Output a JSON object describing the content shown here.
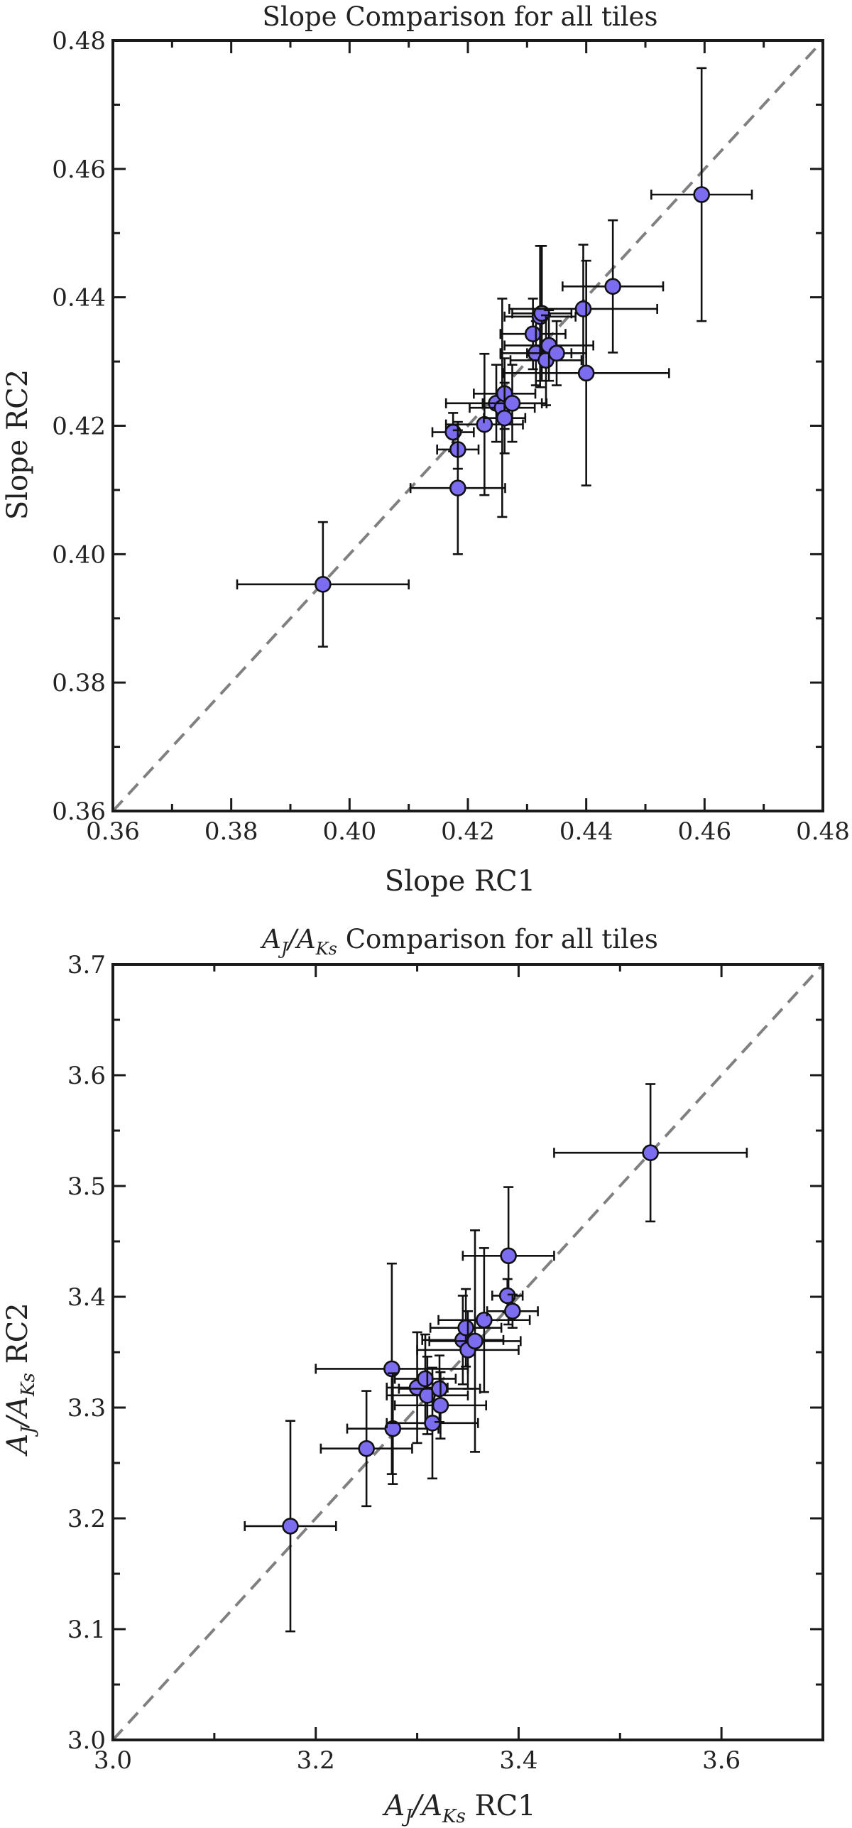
{
  "chart_data": [
    {
      "type": "scatter",
      "title": "Slope Comparison for all tiles",
      "xlabel": "Slope RC1",
      "ylabel": "Slope RC2",
      "xlim": [
        0.36,
        0.48
      ],
      "ylim": [
        0.36,
        0.48
      ],
      "xticks": [
        "0.36",
        "0.38",
        "0.40",
        "0.42",
        "0.44",
        "0.46",
        "0.48"
      ],
      "yticks": [
        "0.36",
        "0.38",
        "0.40",
        "0.42",
        "0.44",
        "0.46",
        "0.48"
      ],
      "reference_line": "y = x (dashed gray)",
      "marker_color": "#7b6cf0",
      "grid": false,
      "points": [
        {
          "x": 0.3955,
          "y": 0.3953,
          "xerr": 0.0145,
          "yerr": 0.0097
        },
        {
          "x": 0.4175,
          "y": 0.419,
          "xerr": 0.0035,
          "yerr": 0.003
        },
        {
          "x": 0.4183,
          "y": 0.4163,
          "xerr": 0.0035,
          "yerr": 0.003
        },
        {
          "x": 0.4183,
          "y": 0.4103,
          "xerr": 0.008,
          "yerr": 0.0103
        },
        {
          "x": 0.4228,
          "y": 0.4202,
          "xerr": 0.0065,
          "yerr": 0.011
        },
        {
          "x": 0.4248,
          "y": 0.4235,
          "xerr": 0.0085,
          "yerr": 0.006
        },
        {
          "x": 0.4258,
          "y": 0.4228,
          "xerr": 0.0055,
          "yerr": 0.017
        },
        {
          "x": 0.4262,
          "y": 0.425,
          "xerr": 0.0052,
          "yerr": 0.0055
        },
        {
          "x": 0.4262,
          "y": 0.4212,
          "xerr": 0.0035,
          "yerr": 0.0055
        },
        {
          "x": 0.4275,
          "y": 0.4235,
          "xerr": 0.005,
          "yerr": 0.006
        },
        {
          "x": 0.431,
          "y": 0.4343,
          "xerr": 0.0055,
          "yerr": 0.0055
        },
        {
          "x": 0.4315,
          "y": 0.4313,
          "xerr": 0.006,
          "yerr": 0.005
        },
        {
          "x": 0.4322,
          "y": 0.437,
          "xerr": 0.006,
          "yerr": 0.011
        },
        {
          "x": 0.4325,
          "y": 0.4375,
          "xerr": 0.005,
          "yerr": 0.0105
        },
        {
          "x": 0.4332,
          "y": 0.4302,
          "xerr": 0.006,
          "yerr": 0.007
        },
        {
          "x": 0.4337,
          "y": 0.4325,
          "xerr": 0.0075,
          "yerr": 0.0055
        },
        {
          "x": 0.435,
          "y": 0.4313,
          "xerr": 0.005,
          "yerr": 0.005
        },
        {
          "x": 0.4395,
          "y": 0.4382,
          "xerr": 0.0125,
          "yerr": 0.01
        },
        {
          "x": 0.44,
          "y": 0.4282,
          "xerr": 0.014,
          "yerr": 0.0175
        },
        {
          "x": 0.4445,
          "y": 0.4417,
          "xerr": 0.0085,
          "yerr": 0.0103
        },
        {
          "x": 0.4595,
          "y": 0.456,
          "xerr": 0.0085,
          "yerr": 0.0197
        }
      ]
    },
    {
      "type": "scatter",
      "title": "A_J/A_Ks Comparison for all tiles",
      "xlabel": "A_J/A_Ks RC1",
      "ylabel": "A_J/A_Ks RC2",
      "xlim": [
        3.0,
        3.7
      ],
      "ylim": [
        3.0,
        3.7
      ],
      "xticks": [
        "3.0",
        "3.2",
        "3.4",
        "3.6"
      ],
      "yticks": [
        "3.0",
        "3.1",
        "3.2",
        "3.3",
        "3.4",
        "3.5",
        "3.6",
        "3.7"
      ],
      "reference_line": "y = x (dashed gray)",
      "marker_color": "#7b6cf0",
      "grid": false,
      "points": [
        {
          "x": 3.175,
          "y": 3.193,
          "xerr": 0.045,
          "yerr": 0.095
        },
        {
          "x": 3.25,
          "y": 3.263,
          "xerr": 0.045,
          "yerr": 0.052
        },
        {
          "x": 3.275,
          "y": 3.335,
          "xerr": 0.075,
          "yerr": 0.095
        },
        {
          "x": 3.276,
          "y": 3.281,
          "xerr": 0.045,
          "yerr": 0.05
        },
        {
          "x": 3.3,
          "y": 3.318,
          "xerr": 0.03,
          "yerr": 0.05
        },
        {
          "x": 3.308,
          "y": 3.326,
          "xerr": 0.03,
          "yerr": 0.04
        },
        {
          "x": 3.31,
          "y": 3.311,
          "xerr": 0.04,
          "yerr": 0.035
        },
        {
          "x": 3.315,
          "y": 3.286,
          "xerr": 0.045,
          "yerr": 0.05
        },
        {
          "x": 3.322,
          "y": 3.317,
          "xerr": 0.04,
          "yerr": 0.03
        },
        {
          "x": 3.323,
          "y": 3.302,
          "xerr": 0.045,
          "yerr": 0.03
        },
        {
          "x": 3.345,
          "y": 3.361,
          "xerr": 0.04,
          "yerr": 0.04
        },
        {
          "x": 3.348,
          "y": 3.372,
          "xerr": 0.035,
          "yerr": 0.035
        },
        {
          "x": 3.35,
          "y": 3.352,
          "xerr": 0.05,
          "yerr": 0.035
        },
        {
          "x": 3.357,
          "y": 3.36,
          "xerr": 0.045,
          "yerr": 0.1
        },
        {
          "x": 3.366,
          "y": 3.379,
          "xerr": 0.045,
          "yerr": 0.065
        },
        {
          "x": 3.39,
          "y": 3.437,
          "xerr": 0.045,
          "yerr": 0.062
        },
        {
          "x": 3.389,
          "y": 3.401,
          "xerr": 0.015,
          "yerr": 0.015
        },
        {
          "x": 3.394,
          "y": 3.387,
          "xerr": 0.025,
          "yerr": 0.015
        },
        {
          "x": 3.53,
          "y": 3.53,
          "xerr": 0.095,
          "yerr": 0.062
        }
      ]
    }
  ]
}
